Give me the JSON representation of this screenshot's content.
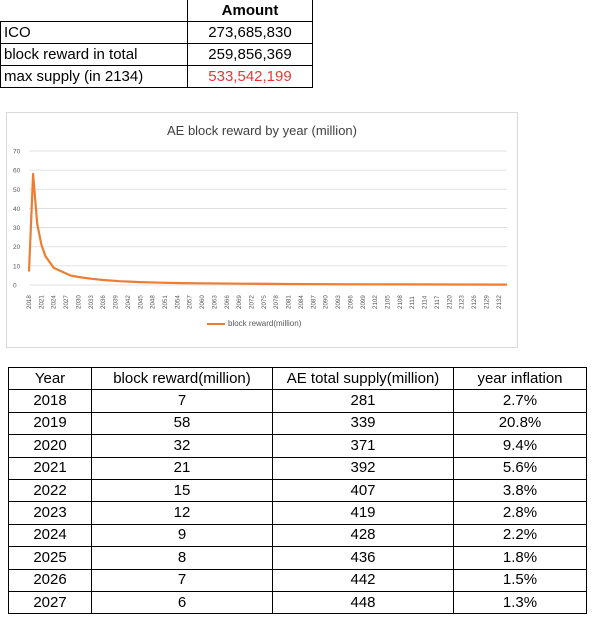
{
  "summary": {
    "header": "Amount",
    "rows": [
      {
        "label": "ICO",
        "value": "273,685,830"
      },
      {
        "label": "block reward in total",
        "value": "259,856,369"
      },
      {
        "label": "max supply (in 2134)",
        "value": "533,542,199",
        "color": "#e53935"
      }
    ]
  },
  "chart_data": {
    "type": "line",
    "title": "AE block reward by year (million)",
    "xlabel": "",
    "ylabel": "",
    "ylim": [
      0,
      70
    ],
    "yticks": [
      0,
      10,
      20,
      30,
      40,
      50,
      60,
      70
    ],
    "grid": true,
    "legend_position": "bottom",
    "x_tick_labels": [
      "2018",
      "2021",
      "2024",
      "2027",
      "2030",
      "2033",
      "2036",
      "2039",
      "2042",
      "2045",
      "2048",
      "2051",
      "2054",
      "2057",
      "2060",
      "2063",
      "2066",
      "2069",
      "2072",
      "2075",
      "2078",
      "2081",
      "2084",
      "2087",
      "2090",
      "2093",
      "2096",
      "2099",
      "2102",
      "2105",
      "2108",
      "2111",
      "2114",
      "2117",
      "2120",
      "2123",
      "2126",
      "2129",
      "2132"
    ],
    "series": [
      {
        "name": "block reward(million)",
        "color": "#ed7d31",
        "x": [
          2018,
          2019,
          2020,
          2021,
          2022,
          2023,
          2024,
          2025,
          2026,
          2027,
          2028,
          2030,
          2033,
          2036,
          2040,
          2045,
          2050,
          2055,
          2060,
          2070,
          2080,
          2090,
          2100,
          2110,
          2120,
          2134
        ],
        "y": [
          7,
          58,
          32,
          21,
          15,
          12,
          9,
          8,
          7,
          6,
          5,
          4.2,
          3.3,
          2.6,
          2,
          1.5,
          1.2,
          1,
          0.9,
          0.7,
          0.5,
          0.4,
          0.35,
          0.3,
          0.25,
          0.2
        ]
      }
    ]
  },
  "table": {
    "headers": [
      "Year",
      "block reward(million)",
      "AE total supply(million)",
      "year inflation"
    ],
    "rows": [
      [
        "2018",
        "7",
        "281",
        "2.7%"
      ],
      [
        "2019",
        "58",
        "339",
        "20.8%"
      ],
      [
        "2020",
        "32",
        "371",
        "9.4%"
      ],
      [
        "2021",
        "21",
        "392",
        "5.6%"
      ],
      [
        "2022",
        "15",
        "407",
        "3.8%"
      ],
      [
        "2023",
        "12",
        "419",
        "2.8%"
      ],
      [
        "2024",
        "9",
        "428",
        "2.2%"
      ],
      [
        "2025",
        "8",
        "436",
        "1.8%"
      ],
      [
        "2026",
        "7",
        "442",
        "1.5%"
      ],
      [
        "2027",
        "6",
        "448",
        "1.3%"
      ]
    ]
  }
}
